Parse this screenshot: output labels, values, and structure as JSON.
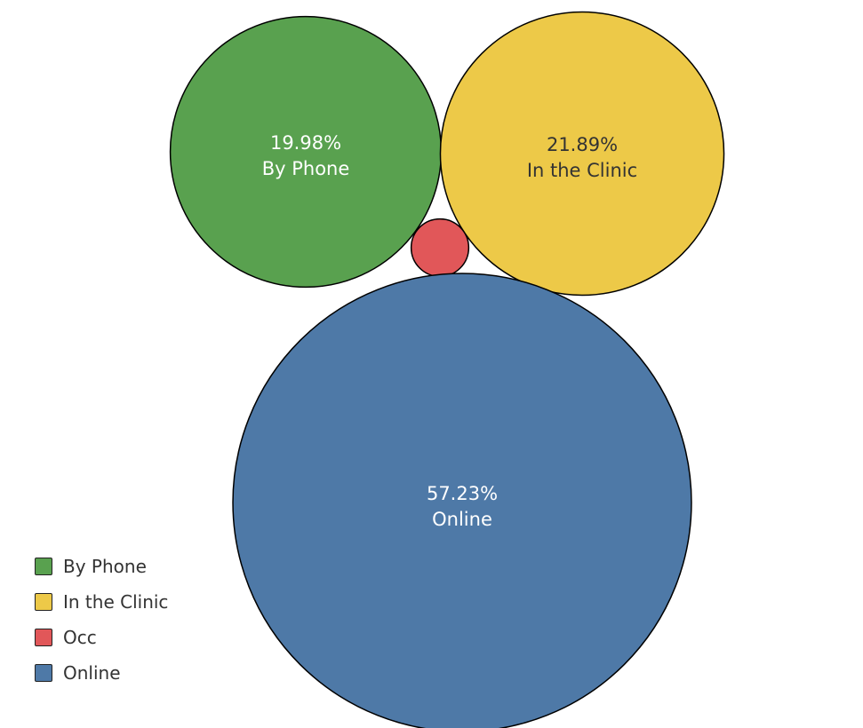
{
  "chart_data": {
    "type": "bubble",
    "legend_placement": "bottom-left",
    "bubbles": [
      {
        "category": "By Phone",
        "value": 19.98,
        "label": "19.98%",
        "color": "#59a14f",
        "text_color": "#ffffff"
      },
      {
        "category": "In the Clinic",
        "value": 21.89,
        "label": "21.89%",
        "color": "#edc948",
        "text_color": "#333333"
      },
      {
        "category": "Occ",
        "value": 0.9,
        "label": "",
        "color": "#e15759",
        "text_color": "#ffffff"
      },
      {
        "category": "Online",
        "value": 57.23,
        "label": "57.23%",
        "color": "#4e79a7",
        "text_color": "#ffffff"
      }
    ]
  },
  "legend": {
    "items": [
      {
        "label": "By Phone",
        "color": "#59a14f"
      },
      {
        "label": "In the Clinic",
        "color": "#edc948"
      },
      {
        "label": "Occ",
        "color": "#e15759"
      },
      {
        "label": "Online",
        "color": "#4e79a7"
      }
    ]
  }
}
